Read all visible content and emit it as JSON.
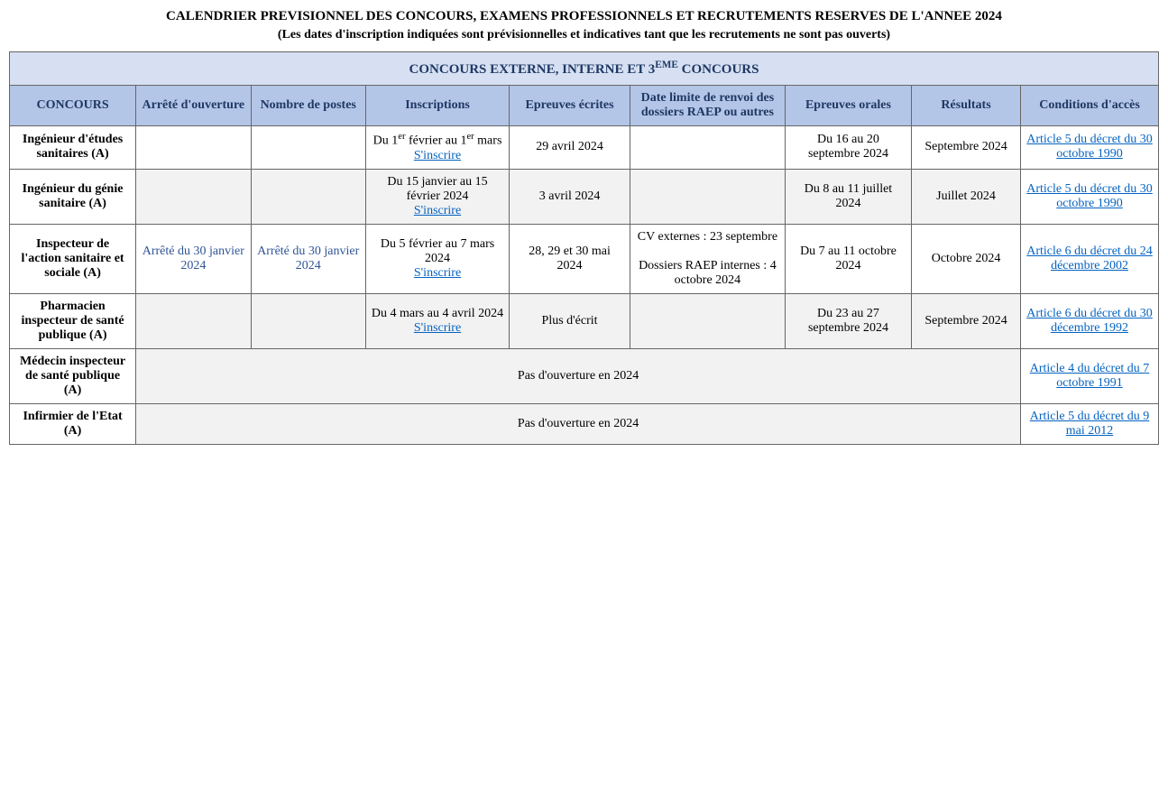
{
  "title": "CALENDRIER PREVISIONNEL DES CONCOURS, EXAMENS PROFESSIONNELS ET RECRUTEMENTS RESERVES DE L'ANNEE 2024",
  "subtitle": "(Les dates d'inscription indiquées sont prévisionnelles et indicatives tant que les recrutements ne sont pas ouverts)",
  "section_header_pre": "CONCOURS EXTERNE, INTERNE ET 3",
  "section_header_sup": "EME",
  "section_header_post": " CONCOURS",
  "columns": [
    "CONCOURS",
    "Arrêté d'ouverture",
    "Nombre de postes",
    "Inscriptions",
    "Epreuves écrites",
    "Date limite de renvoi des dossiers RAEP ou autres",
    "Epreuves orales",
    "Résultats",
    "Conditions d'accès"
  ],
  "col_widths": [
    "11%",
    "10%",
    "10%",
    "12.5%",
    "10.5%",
    "13.5%",
    "11%",
    "9.5%",
    "12%"
  ],
  "signup_label": "S'inscrire",
  "rows": [
    {
      "label": "Ingénieur d'études sanitaires (A)",
      "arrete": "",
      "postes": "",
      "inscription_pre": "Du 1",
      "inscription_sup1": "er",
      "inscription_mid": " février au 1",
      "inscription_sup2": "er",
      "inscription_post": " mars",
      "has_signup": true,
      "ecrites": "29 avril 2024",
      "raep": "",
      "orales": "Du 16 au 20 septembre 2024",
      "resultats": "Septembre 2024",
      "conditions": "Article 5 du décret du 30 octobre 1990",
      "alt": false
    },
    {
      "label": "Ingénieur du génie sanitaire (A)",
      "arrete": "",
      "postes": "",
      "inscription_text": "Du 15 janvier au 15 février 2024",
      "has_signup": true,
      "ecrites": "3 avril 2024",
      "raep": "",
      "orales": "Du 8 au 11 juillet 2024",
      "resultats": "Juillet 2024",
      "conditions": "Article 5 du décret du 30 octobre 1990",
      "alt": true
    },
    {
      "label": "Inspecteur de l'action sanitaire et sociale (A)",
      "arrete": "Arrêté du 30 janvier 2024",
      "postes": "Arrêté du 30 janvier 2024",
      "inscription_text": "Du 5 février au 7 mars 2024",
      "has_signup": true,
      "ecrites": "28, 29 et 30 mai 2024",
      "raep_line1": "CV externes : 23 septembre",
      "raep_line2": "Dossiers RAEP internes : 4 octobre 2024",
      "orales": "Du 7 au 11 octobre 2024",
      "resultats": "Octobre 2024",
      "conditions": "Article 6 du décret du 24 décembre 2002",
      "alt": false
    },
    {
      "label": "Pharmacien inspecteur de santé publique (A)",
      "arrete": "",
      "postes": "",
      "inscription_text": "Du 4 mars au 4 avril 2024",
      "has_signup": true,
      "ecrites": "Plus d'écrit",
      "raep": "",
      "orales": "Du 23 au 27 septembre 2024",
      "resultats": "Septembre 2024",
      "conditions": "Article 6 du décret du 30 décembre 1992",
      "alt": true
    },
    {
      "label": "Médecin inspecteur de santé publique (A)",
      "merged_text": "Pas d'ouverture en 2024",
      "conditions": "Article 4 du décret du 7 octobre 1991",
      "alt": false,
      "merged": true
    },
    {
      "label": "Infirmier de l'Etat (A)",
      "merged_text": "Pas d'ouverture en 2024",
      "conditions": "Article 5 du décret du 9 mai 2012",
      "alt": true,
      "merged": true
    }
  ],
  "colors": {
    "section_bg": "#d6e0f2",
    "header_bg": "#b4c6e7",
    "header_text": "#1f3864",
    "link": "#0563c1",
    "arrete_link": "#2f5496",
    "alt_bg": "#f2f2f2",
    "border": "#666666"
  }
}
